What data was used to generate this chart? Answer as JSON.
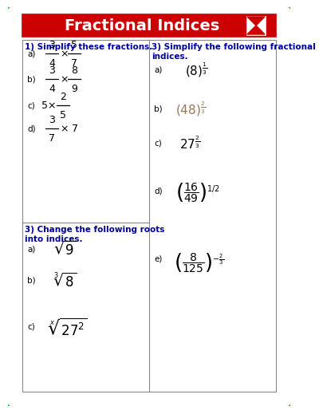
{
  "title": "Fractional Indices",
  "outer_border_color": "#00CC00",
  "title_bg": "#CC0000",
  "section_title_color": "#000099",
  "section1_title": "1) Simplify these fractions.",
  "section2_title": "3) Change the following roots\ninto indices.",
  "section3_title": "3) Simplify the following fractional\nindices.",
  "bg_color": "#FFFFFF"
}
